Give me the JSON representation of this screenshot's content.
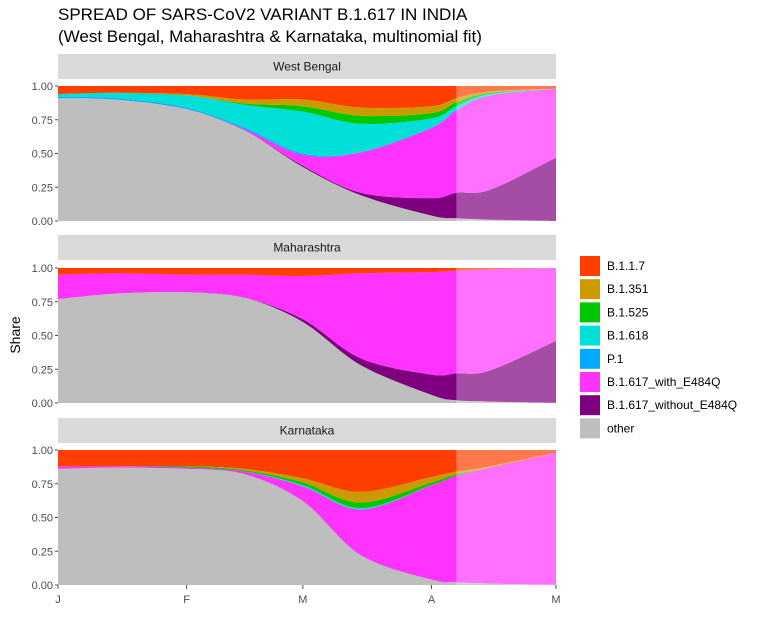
{
  "title": "SPREAD OF SARS-CoV2 VARIANT B.1.617 IN INDIA",
  "subtitle": "(West Bengal, Maharashtra & Karnataka, multinomial fit)",
  "chart_data": {
    "type": "area",
    "stacked": "fill",
    "ylabel": "Share",
    "xlabel": "",
    "x_ticks": [
      "J",
      "F",
      "M",
      "A",
      "M"
    ],
    "y_ticks": [
      "0.00",
      "0.25",
      "0.50",
      "0.75",
      "1.00"
    ],
    "ylim": [
      0,
      1
    ],
    "xlim": [
      "2021-01-01",
      "2021-05-01"
    ],
    "forecast_start": "2021-04-07",
    "legend_position": "right",
    "variants": [
      "B.1.1.7",
      "B.1.351",
      "B.1.525",
      "B.1.618",
      "P.1",
      "B.1.617_with_E484Q",
      "B.1.617_without_E484Q",
      "other"
    ],
    "colors": {
      "B.1.1.7": "#FF3F00",
      "B.1.351": "#CC9900",
      "B.1.525": "#00C800",
      "B.1.618": "#00E0D8",
      "P.1": "#00AAFF",
      "B.1.617_with_E484Q": "#FF33FF",
      "B.1.617_without_E484Q": "#7F007F",
      "other": "#BEBEBE"
    },
    "stack_order_bottom_to_top": [
      "other",
      "B.1.617_without_E484Q",
      "B.1.617_with_E484Q",
      "P.1",
      "B.1.618",
      "B.1.525",
      "B.1.351",
      "B.1.1.7"
    ],
    "dates": [
      "2021-01-01",
      "2021-01-15",
      "2021-02-01",
      "2021-02-15",
      "2021-03-01",
      "2021-03-15",
      "2021-04-01",
      "2021-04-07",
      "2021-04-15",
      "2021-05-01"
    ],
    "panels": [
      {
        "name": "West Bengal",
        "series": [
          {
            "name": "other",
            "values": [
              0.91,
              0.9,
              0.83,
              0.67,
              0.4,
              0.19,
              0.04,
              0.02,
              0.01,
              0.0
            ]
          },
          {
            "name": "B.1.617_without_E484Q",
            "values": [
              0.0,
              0.0,
              0.0,
              0.0,
              0.01,
              0.02,
              0.13,
              0.19,
              0.22,
              0.47
            ]
          },
          {
            "name": "B.1.617_with_E484Q",
            "values": [
              0.0,
              0.0,
              0.0,
              0.01,
              0.08,
              0.3,
              0.52,
              0.61,
              0.7,
              0.51
            ]
          },
          {
            "name": "P.1",
            "values": [
              0.01,
              0.01,
              0.01,
              0.01,
              0.01,
              0.0,
              0.0,
              0.0,
              0.0,
              0.0
            ]
          },
          {
            "name": "B.1.618",
            "values": [
              0.02,
              0.04,
              0.09,
              0.17,
              0.31,
              0.21,
              0.07,
              0.03,
              0.01,
              0.0
            ]
          },
          {
            "name": "B.1.525",
            "values": [
              0.0,
              0.0,
              0.0,
              0.01,
              0.04,
              0.06,
              0.04,
              0.03,
              0.01,
              0.0
            ]
          },
          {
            "name": "B.1.351",
            "values": [
              0.0,
              0.0,
              0.01,
              0.03,
              0.05,
              0.06,
              0.05,
              0.03,
              0.01,
              0.0
            ]
          },
          {
            "name": "B.1.1.7",
            "values": [
              0.06,
              0.05,
              0.06,
              0.1,
              0.1,
              0.16,
              0.15,
              0.09,
              0.04,
              0.02
            ]
          }
        ]
      },
      {
        "name": "Maharashtra",
        "series": [
          {
            "name": "other",
            "values": [
              0.77,
              0.81,
              0.82,
              0.78,
              0.6,
              0.28,
              0.06,
              0.02,
              0.01,
              0.0
            ]
          },
          {
            "name": "B.1.617_without_E484Q",
            "values": [
              0.0,
              0.0,
              0.0,
              0.0,
              0.02,
              0.05,
              0.15,
              0.2,
              0.23,
              0.46
            ]
          },
          {
            "name": "B.1.617_with_E484Q",
            "values": [
              0.18,
              0.15,
              0.13,
              0.17,
              0.32,
              0.63,
              0.76,
              0.76,
              0.75,
              0.54
            ]
          },
          {
            "name": "P.1",
            "values": [
              0.0,
              0.0,
              0.0,
              0.0,
              0.0,
              0.0,
              0.0,
              0.0,
              0.0,
              0.0
            ]
          },
          {
            "name": "B.1.618",
            "values": [
              0.0,
              0.0,
              0.0,
              0.0,
              0.0,
              0.0,
              0.0,
              0.0,
              0.0,
              0.0
            ]
          },
          {
            "name": "B.1.525",
            "values": [
              0.0,
              0.0,
              0.0,
              0.0,
              0.0,
              0.0,
              0.0,
              0.0,
              0.0,
              0.0
            ]
          },
          {
            "name": "B.1.351",
            "values": [
              0.0,
              0.0,
              0.0,
              0.0,
              0.0,
              0.0,
              0.0,
              0.0,
              0.0,
              0.0
            ]
          },
          {
            "name": "B.1.1.7",
            "values": [
              0.05,
              0.04,
              0.05,
              0.05,
              0.06,
              0.04,
              0.03,
              0.02,
              0.01,
              0.0
            ]
          }
        ]
      },
      {
        "name": "Karnataka",
        "series": [
          {
            "name": "other",
            "values": [
              0.86,
              0.87,
              0.86,
              0.82,
              0.62,
              0.22,
              0.04,
              0.02,
              0.01,
              0.0
            ]
          },
          {
            "name": "B.1.617_without_E484Q",
            "values": [
              0.0,
              0.0,
              0.0,
              0.0,
              0.0,
              0.0,
              0.0,
              0.0,
              0.0,
              0.0
            ]
          },
          {
            "name": "B.1.617_with_E484Q",
            "values": [
              0.02,
              0.01,
              0.01,
              0.02,
              0.11,
              0.34,
              0.7,
              0.79,
              0.86,
              0.98
            ]
          },
          {
            "name": "P.1",
            "values": [
              0.0,
              0.0,
              0.0,
              0.0,
              0.0,
              0.0,
              0.0,
              0.0,
              0.0,
              0.0
            ]
          },
          {
            "name": "B.1.618",
            "values": [
              0.0,
              0.0,
              0.0,
              0.0,
              0.01,
              0.01,
              0.0,
              0.0,
              0.0,
              0.0
            ]
          },
          {
            "name": "B.1.525",
            "values": [
              0.0,
              0.0,
              0.01,
              0.01,
              0.02,
              0.04,
              0.02,
              0.01,
              0.0,
              0.0
            ]
          },
          {
            "name": "B.1.351",
            "values": [
              0.0,
              0.0,
              0.0,
              0.01,
              0.03,
              0.08,
              0.04,
              0.02,
              0.01,
              0.0
            ]
          },
          {
            "name": "B.1.1.7",
            "values": [
              0.12,
              0.12,
              0.12,
              0.14,
              0.23,
              0.31,
              0.2,
              0.16,
              0.12,
              0.02
            ]
          }
        ]
      }
    ]
  }
}
